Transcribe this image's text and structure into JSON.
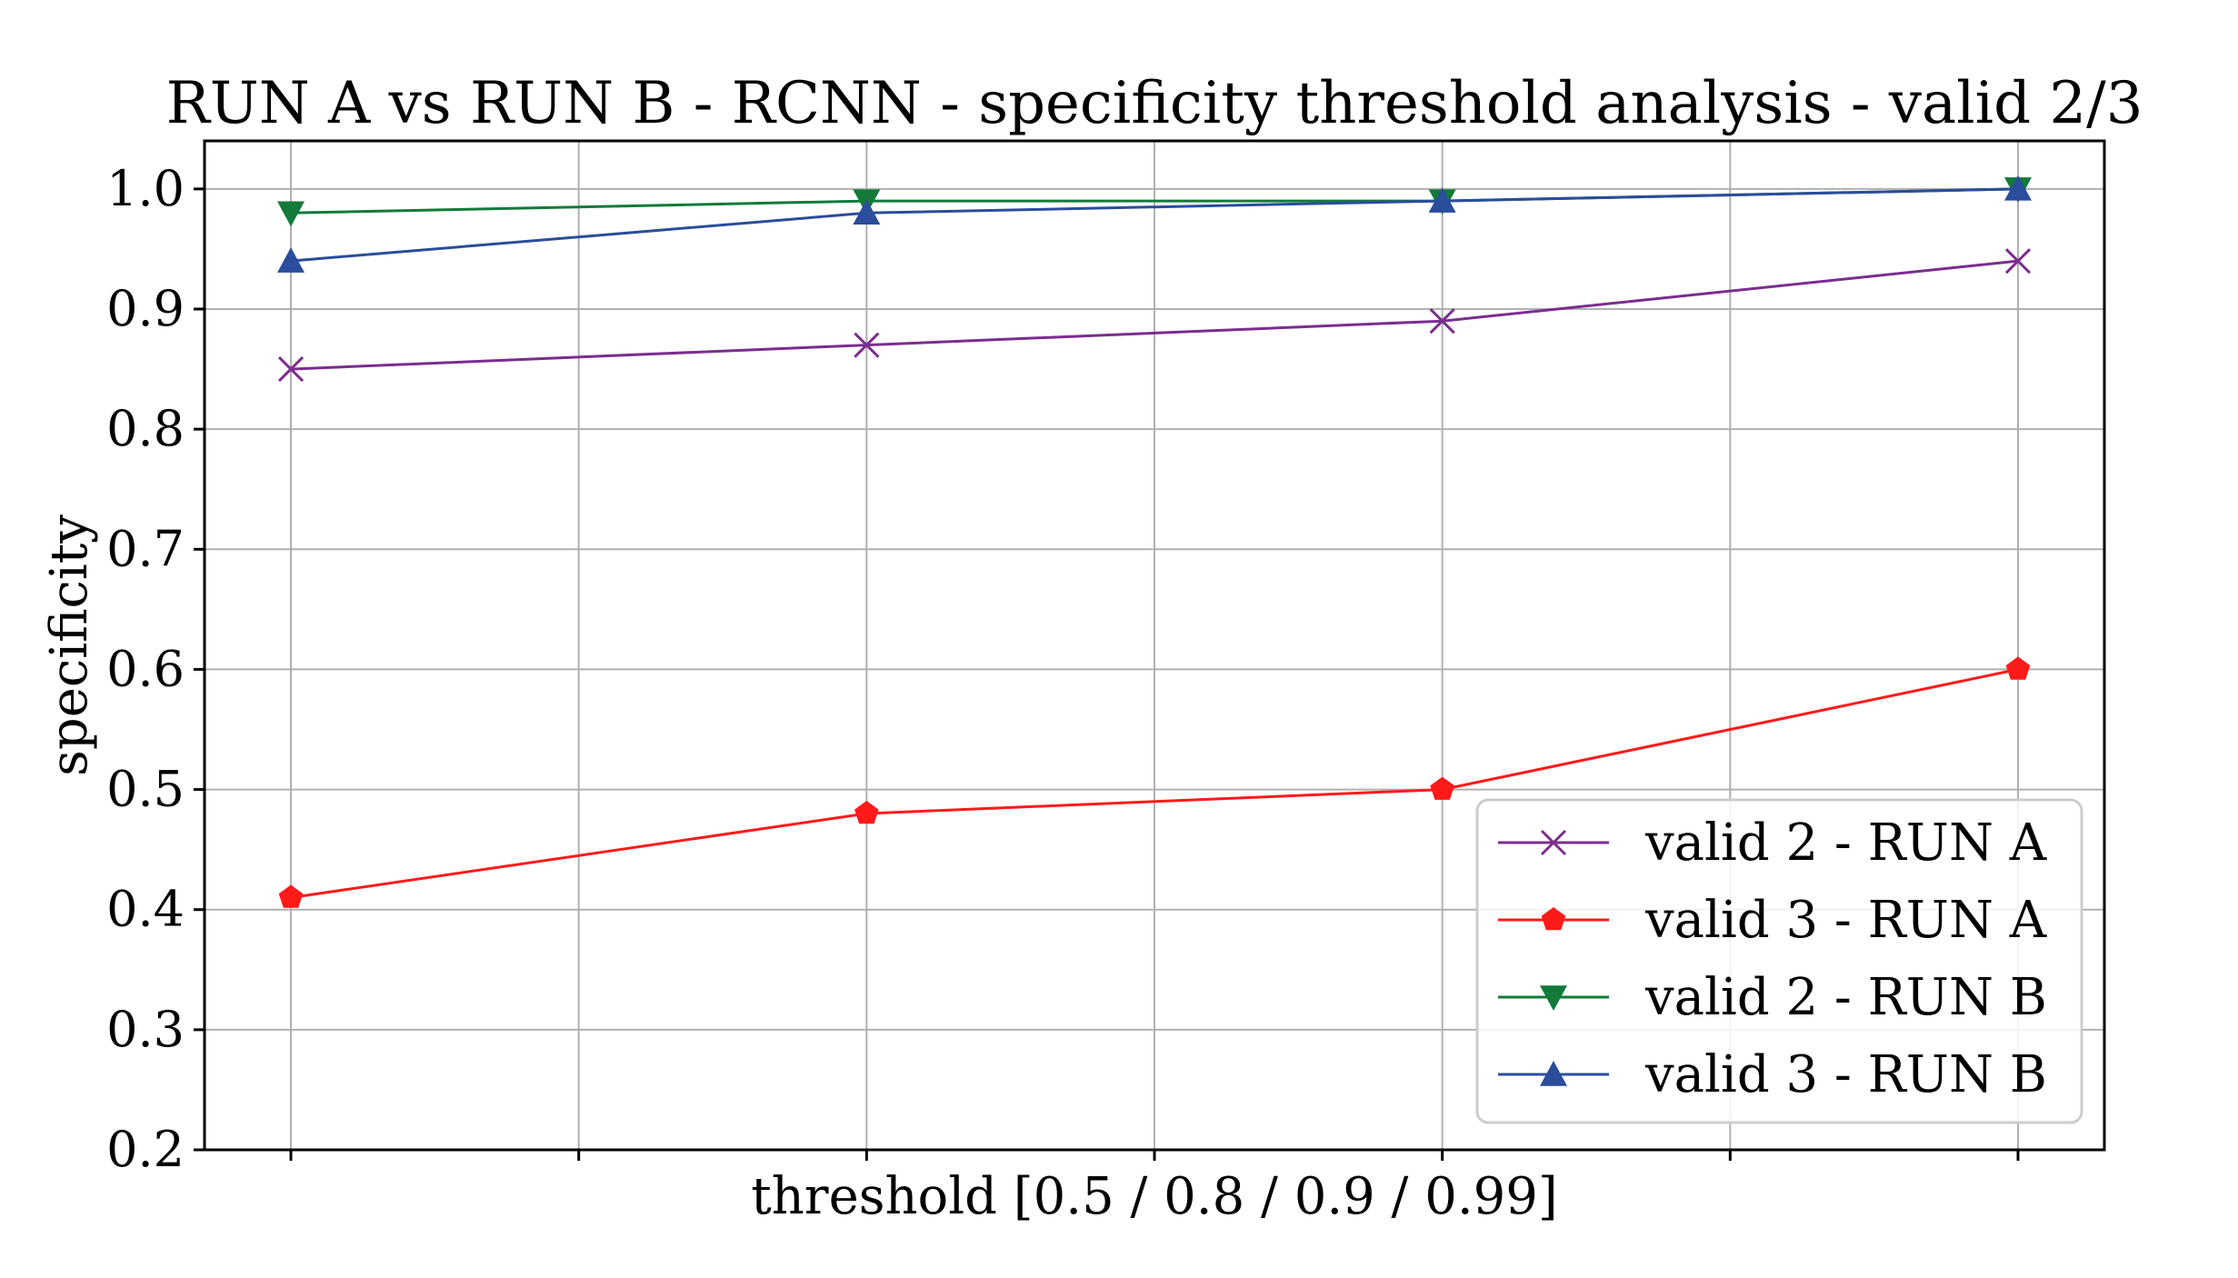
{
  "chart_data": {
    "type": "line",
    "title": "RUN A vs RUN B - RCNN - specificity threshold analysis - valid 2/3",
    "xlabel": "threshold [0.5 / 0.8 / 0.9 / 0.99]",
    "ylabel": "specificity",
    "x": [
      0,
      1,
      2,
      3
    ],
    "xlim": [
      -0.15,
      3.15
    ],
    "ylim": [
      0.2,
      1.04
    ],
    "yticks": [
      "0.2",
      "0.3",
      "0.4",
      "0.5",
      "0.6",
      "0.7",
      "0.8",
      "0.9",
      "1.0"
    ],
    "grid": true,
    "legend_position": "lower-right",
    "series": [
      {
        "name": "valid 2 - RUN A",
        "values": [
          0.85,
          0.87,
          0.89,
          0.94
        ],
        "color": "#7b2d8e",
        "marker": "x"
      },
      {
        "name": "valid 3 - RUN A",
        "values": [
          0.41,
          0.48,
          0.5,
          0.6
        ],
        "color": "#ff1a1a",
        "marker": "pentagon"
      },
      {
        "name": "valid 2 - RUN B",
        "values": [
          0.98,
          0.99,
          0.99,
          1.0
        ],
        "color": "#137a3a",
        "marker": "triangle-down"
      },
      {
        "name": "valid 3 - RUN B",
        "values": [
          0.94,
          0.98,
          0.99,
          1.0
        ],
        "color": "#2a4d9c",
        "marker": "triangle-up"
      }
    ]
  }
}
